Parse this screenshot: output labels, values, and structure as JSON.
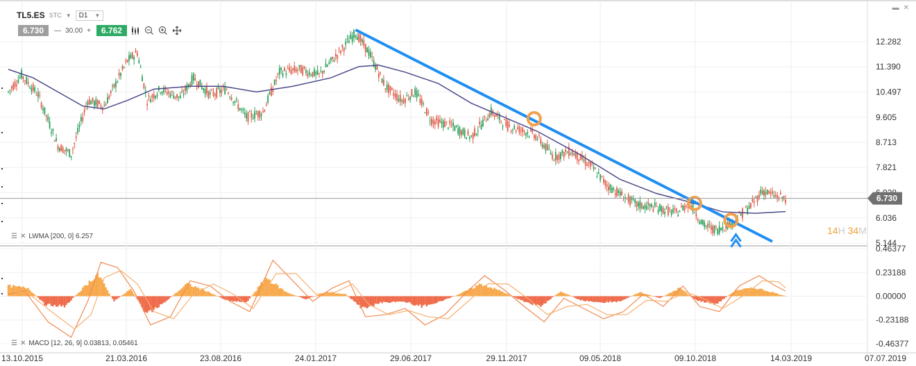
{
  "header": {
    "symbol": "TL5.ES",
    "exchange": "STC",
    "timeframe": "D1",
    "bid": "6.730",
    "qty": "30.00",
    "qty_minus": "—",
    "qty_plus": "+",
    "ask": "6.762"
  },
  "icons": [
    "candlestick-icon",
    "zoom-out-icon",
    "zoom-in-icon",
    "move-icon",
    "minimize-icon",
    "close-icon"
  ],
  "indicators": {
    "lwma_label": "LWMA [200, 0] 6.257",
    "macd_label": "MACD [12, 26, 9] 0.03813, 0.05461"
  },
  "timer": {
    "h": "14",
    "h_unit": "H",
    "m": "34",
    "m_unit": "M"
  },
  "colors": {
    "bull": "#2b9f59",
    "bear": "#e05a47",
    "lwma": "#4a4a8a",
    "trend": "#1f8ef1",
    "marker": "#f2a04b",
    "macd_pos": "#f7a84a",
    "macd_neg": "#ef6a4a",
    "macd_line1": "#f08a50",
    "macd_line2": "#f6b070",
    "price_tag": "#707070"
  },
  "chart_data": [
    {
      "type": "candlestick",
      "x_ticks": [
        "13.10.2015",
        "21.03.2016",
        "23.08.2016",
        "24.01.2017",
        "29.06.2017",
        "29.11.2017",
        "09.05.2018",
        "09.10.2018",
        "14.03.2019",
        "07.07.2019"
      ],
      "y_ticks": [
        "12.282",
        "11.390",
        "10.497",
        "9.605",
        "8.713",
        "7.821",
        "6.928",
        "6.036",
        "5.144"
      ],
      "ylim": [
        5.144,
        12.282
      ],
      "last_price": "6.730",
      "price_path": [
        {
          "i": 0,
          "v": 10.5
        },
        {
          "i": 8,
          "v": 11.1
        },
        {
          "i": 18,
          "v": 10.4
        },
        {
          "i": 30,
          "v": 8.6
        },
        {
          "i": 38,
          "v": 8.3
        },
        {
          "i": 48,
          "v": 10.2
        },
        {
          "i": 58,
          "v": 10.0
        },
        {
          "i": 72,
          "v": 11.6
        },
        {
          "i": 78,
          "v": 11.9
        },
        {
          "i": 84,
          "v": 10.2
        },
        {
          "i": 92,
          "v": 10.6
        },
        {
          "i": 104,
          "v": 10.3
        },
        {
          "i": 112,
          "v": 11.0
        },
        {
          "i": 122,
          "v": 10.4
        },
        {
          "i": 132,
          "v": 10.6
        },
        {
          "i": 144,
          "v": 9.6
        },
        {
          "i": 154,
          "v": 9.8
        },
        {
          "i": 164,
          "v": 11.2
        },
        {
          "i": 176,
          "v": 11.3
        },
        {
          "i": 188,
          "v": 11.1
        },
        {
          "i": 200,
          "v": 11.9
        },
        {
          "i": 210,
          "v": 12.6
        },
        {
          "i": 218,
          "v": 11.9
        },
        {
          "i": 228,
          "v": 10.7
        },
        {
          "i": 238,
          "v": 10.2
        },
        {
          "i": 246,
          "v": 10.5
        },
        {
          "i": 256,
          "v": 9.5
        },
        {
          "i": 268,
          "v": 9.3
        },
        {
          "i": 280,
          "v": 8.9
        },
        {
          "i": 292,
          "v": 9.8
        },
        {
          "i": 302,
          "v": 9.3
        },
        {
          "i": 318,
          "v": 9.0
        },
        {
          "i": 330,
          "v": 8.2
        },
        {
          "i": 340,
          "v": 8.4
        },
        {
          "i": 352,
          "v": 7.9
        },
        {
          "i": 362,
          "v": 7.2
        },
        {
          "i": 372,
          "v": 6.8
        },
        {
          "i": 380,
          "v": 6.5
        },
        {
          "i": 392,
          "v": 6.4
        },
        {
          "i": 404,
          "v": 6.2
        },
        {
          "i": 412,
          "v": 6.6
        },
        {
          "i": 420,
          "v": 5.8
        },
        {
          "i": 428,
          "v": 5.6
        },
        {
          "i": 438,
          "v": 5.9
        },
        {
          "i": 448,
          "v": 6.4
        },
        {
          "i": 456,
          "v": 7.0
        },
        {
          "i": 464,
          "v": 6.8
        },
        {
          "i": 470,
          "v": 6.73
        }
      ],
      "lwma": [
        {
          "i": 0,
          "v": 11.3
        },
        {
          "i": 15,
          "v": 11.0
        },
        {
          "i": 30,
          "v": 10.5
        },
        {
          "i": 45,
          "v": 10.0
        },
        {
          "i": 58,
          "v": 9.9
        },
        {
          "i": 72,
          "v": 10.2
        },
        {
          "i": 88,
          "v": 10.6
        },
        {
          "i": 110,
          "v": 10.7
        },
        {
          "i": 130,
          "v": 10.7
        },
        {
          "i": 150,
          "v": 10.5
        },
        {
          "i": 172,
          "v": 10.7
        },
        {
          "i": 195,
          "v": 11.0
        },
        {
          "i": 212,
          "v": 11.4
        },
        {
          "i": 224,
          "v": 11.45
        },
        {
          "i": 240,
          "v": 11.2
        },
        {
          "i": 260,
          "v": 10.8
        },
        {
          "i": 280,
          "v": 10.1
        },
        {
          "i": 300,
          "v": 9.6
        },
        {
          "i": 320,
          "v": 9.1
        },
        {
          "i": 345,
          "v": 8.3
        },
        {
          "i": 370,
          "v": 7.4
        },
        {
          "i": 392,
          "v": 6.9
        },
        {
          "i": 412,
          "v": 6.6
        },
        {
          "i": 432,
          "v": 6.25
        },
        {
          "i": 452,
          "v": 6.2
        },
        {
          "i": 470,
          "v": 6.26
        }
      ],
      "trendline": [
        {
          "i": 210,
          "v": 12.7
        },
        {
          "i": 462,
          "v": 5.2
        }
      ],
      "signal_markers": [
        {
          "i": 318,
          "v": 9.55
        },
        {
          "i": 415,
          "v": 6.55
        },
        {
          "i": 437,
          "v": 5.95
        }
      ],
      "buy_arrow": {
        "i": 440,
        "v": 5.3
      }
    },
    {
      "type": "bar",
      "name": "MACD",
      "y_ticks": [
        "0.46377",
        "0.23188",
        "0.00000",
        "-0.23188",
        "-0.46377"
      ],
      "ylim": [
        -0.46377,
        0.46377
      ],
      "histogram": [
        {
          "i": 0,
          "v": 0.1
        },
        {
          "i": 12,
          "v": 0.08
        },
        {
          "i": 22,
          "v": -0.08
        },
        {
          "i": 34,
          "v": -0.1
        },
        {
          "i": 44,
          "v": 0.06
        },
        {
          "i": 54,
          "v": 0.22
        },
        {
          "i": 64,
          "v": -0.05
        },
        {
          "i": 74,
          "v": 0.07
        },
        {
          "i": 84,
          "v": -0.18
        },
        {
          "i": 96,
          "v": -0.04
        },
        {
          "i": 108,
          "v": 0.12
        },
        {
          "i": 120,
          "v": 0.05
        },
        {
          "i": 132,
          "v": -0.04
        },
        {
          "i": 144,
          "v": -0.06
        },
        {
          "i": 156,
          "v": 0.18
        },
        {
          "i": 168,
          "v": 0.04
        },
        {
          "i": 180,
          "v": -0.03
        },
        {
          "i": 192,
          "v": 0.04
        },
        {
          "i": 204,
          "v": 0.02
        },
        {
          "i": 214,
          "v": -0.12
        },
        {
          "i": 226,
          "v": -0.06
        },
        {
          "i": 238,
          "v": -0.05
        },
        {
          "i": 250,
          "v": -0.1
        },
        {
          "i": 262,
          "v": -0.05
        },
        {
          "i": 274,
          "v": 0.03
        },
        {
          "i": 286,
          "v": 0.12
        },
        {
          "i": 298,
          "v": 0.05
        },
        {
          "i": 310,
          "v": -0.04
        },
        {
          "i": 322,
          "v": -0.1
        },
        {
          "i": 334,
          "v": 0.05
        },
        {
          "i": 346,
          "v": -0.04
        },
        {
          "i": 358,
          "v": -0.06
        },
        {
          "i": 370,
          "v": -0.05
        },
        {
          "i": 382,
          "v": 0.04
        },
        {
          "i": 394,
          "v": -0.02
        },
        {
          "i": 406,
          "v": 0.08
        },
        {
          "i": 416,
          "v": -0.04
        },
        {
          "i": 428,
          "v": -0.08
        },
        {
          "i": 440,
          "v": 0.06
        },
        {
          "i": 452,
          "v": 0.08
        },
        {
          "i": 462,
          "v": 0.04
        },
        {
          "i": 470,
          "v": 0.0
        }
      ],
      "line1": [
        {
          "i": 0,
          "v": 0.02
        },
        {
          "i": 10,
          "v": 0.05
        },
        {
          "i": 24,
          "v": -0.25
        },
        {
          "i": 38,
          "v": -0.4
        },
        {
          "i": 48,
          "v": -0.05
        },
        {
          "i": 56,
          "v": 0.33
        },
        {
          "i": 66,
          "v": 0.28
        },
        {
          "i": 76,
          "v": 0.05
        },
        {
          "i": 86,
          "v": -0.28
        },
        {
          "i": 98,
          "v": -0.2
        },
        {
          "i": 110,
          "v": 0.15
        },
        {
          "i": 122,
          "v": 0.1
        },
        {
          "i": 134,
          "v": -0.05
        },
        {
          "i": 146,
          "v": -0.15
        },
        {
          "i": 160,
          "v": 0.35
        },
        {
          "i": 172,
          "v": 0.15
        },
        {
          "i": 184,
          "v": -0.05
        },
        {
          "i": 196,
          "v": 0.08
        },
        {
          "i": 206,
          "v": 0.15
        },
        {
          "i": 216,
          "v": -0.2
        },
        {
          "i": 228,
          "v": -0.18
        },
        {
          "i": 240,
          "v": -0.12
        },
        {
          "i": 252,
          "v": -0.28
        },
        {
          "i": 264,
          "v": -0.18
        },
        {
          "i": 276,
          "v": 0.02
        },
        {
          "i": 288,
          "v": 0.2
        },
        {
          "i": 300,
          "v": 0.06
        },
        {
          "i": 312,
          "v": -0.1
        },
        {
          "i": 324,
          "v": -0.25
        },
        {
          "i": 336,
          "v": -0.02
        },
        {
          "i": 348,
          "v": -0.12
        },
        {
          "i": 360,
          "v": -0.22
        },
        {
          "i": 372,
          "v": -0.15
        },
        {
          "i": 384,
          "v": 0.02
        },
        {
          "i": 396,
          "v": -0.1
        },
        {
          "i": 408,
          "v": 0.1
        },
        {
          "i": 418,
          "v": -0.1
        },
        {
          "i": 430,
          "v": -0.15
        },
        {
          "i": 442,
          "v": 0.1
        },
        {
          "i": 454,
          "v": 0.2
        },
        {
          "i": 464,
          "v": 0.1
        },
        {
          "i": 470,
          "v": 0.05
        }
      ],
      "line2": [
        {
          "i": 0,
          "v": 0.05
        },
        {
          "i": 12,
          "v": 0.03
        },
        {
          "i": 26,
          "v": -0.15
        },
        {
          "i": 40,
          "v": -0.32
        },
        {
          "i": 50,
          "v": -0.18
        },
        {
          "i": 58,
          "v": 0.18
        },
        {
          "i": 68,
          "v": 0.25
        },
        {
          "i": 78,
          "v": 0.12
        },
        {
          "i": 88,
          "v": -0.15
        },
        {
          "i": 100,
          "v": -0.22
        },
        {
          "i": 112,
          "v": 0.02
        },
        {
          "i": 124,
          "v": 0.12
        },
        {
          "i": 136,
          "v": 0.02
        },
        {
          "i": 148,
          "v": -0.12
        },
        {
          "i": 162,
          "v": 0.22
        },
        {
          "i": 174,
          "v": 0.22
        },
        {
          "i": 186,
          "v": 0.02
        },
        {
          "i": 198,
          "v": 0.04
        },
        {
          "i": 208,
          "v": 0.12
        },
        {
          "i": 218,
          "v": -0.08
        },
        {
          "i": 230,
          "v": -0.18
        },
        {
          "i": 242,
          "v": -0.14
        },
        {
          "i": 254,
          "v": -0.2
        },
        {
          "i": 266,
          "v": -0.22
        },
        {
          "i": 278,
          "v": -0.05
        },
        {
          "i": 290,
          "v": 0.12
        },
        {
          "i": 302,
          "v": 0.12
        },
        {
          "i": 314,
          "v": -0.02
        },
        {
          "i": 326,
          "v": -0.18
        },
        {
          "i": 338,
          "v": -0.1
        },
        {
          "i": 350,
          "v": -0.08
        },
        {
          "i": 362,
          "v": -0.18
        },
        {
          "i": 374,
          "v": -0.18
        },
        {
          "i": 386,
          "v": -0.04
        },
        {
          "i": 398,
          "v": -0.05
        },
        {
          "i": 410,
          "v": 0.04
        },
        {
          "i": 420,
          "v": -0.02
        },
        {
          "i": 432,
          "v": -0.12
        },
        {
          "i": 444,
          "v": 0.0
        },
        {
          "i": 456,
          "v": 0.15
        },
        {
          "i": 466,
          "v": 0.14
        },
        {
          "i": 470,
          "v": 0.08
        }
      ]
    }
  ]
}
